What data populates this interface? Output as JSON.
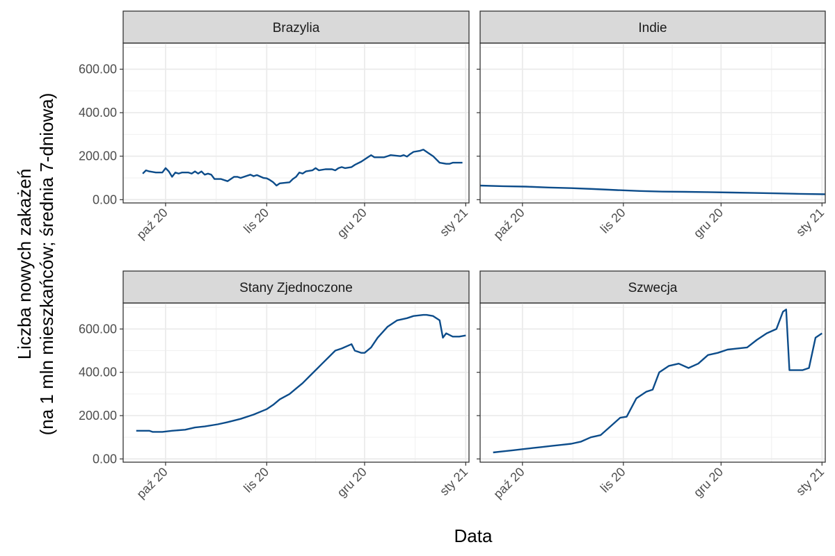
{
  "chart_data": {
    "type": "line",
    "xlabel": "Data",
    "ylabel_line1": "Liczba nowych zakażeń",
    "ylabel_line2": "(na 1 mln mieszkańców; średnia 7-dniowa)",
    "y_ticks": [
      0,
      200,
      400,
      600
    ],
    "y_tick_labels": [
      "0.00",
      "200.00",
      "400.00",
      "600.00"
    ],
    "ylim": [
      -15,
      720
    ],
    "x_ticks": [
      "2020-10-01",
      "2020-11-01",
      "2020-12-01",
      "2021-01-01"
    ],
    "x_tick_labels": [
      "paź 20",
      "lis 20",
      "gru 20",
      "sty 21"
    ],
    "xlim": [
      "2020-09-18",
      "2021-01-02"
    ],
    "grid": true,
    "line_color": "#0c4c8a",
    "panels": [
      {
        "title": "Brazylia",
        "x": [
          "2020-09-24",
          "2020-09-25",
          "2020-09-26",
          "2020-09-28",
          "2020-09-30",
          "2020-10-01",
          "2020-10-02",
          "2020-10-03",
          "2020-10-04",
          "2020-10-05",
          "2020-10-06",
          "2020-10-08",
          "2020-10-09",
          "2020-10-10",
          "2020-10-11",
          "2020-10-12",
          "2020-10-13",
          "2020-10-14",
          "2020-10-15",
          "2020-10-16",
          "2020-10-18",
          "2020-10-20",
          "2020-10-22",
          "2020-10-23",
          "2020-10-24",
          "2020-10-27",
          "2020-10-28",
          "2020-10-29",
          "2020-10-31",
          "2020-11-01",
          "2020-11-02",
          "2020-11-03",
          "2020-11-04",
          "2020-11-05",
          "2020-11-08",
          "2020-11-09",
          "2020-11-10",
          "2020-11-11",
          "2020-11-12",
          "2020-11-13",
          "2020-11-15",
          "2020-11-16",
          "2020-11-17",
          "2020-11-19",
          "2020-11-21",
          "2020-11-22",
          "2020-11-23",
          "2020-11-24",
          "2020-11-25",
          "2020-11-27",
          "2020-11-28",
          "2020-11-30",
          "2020-12-01",
          "2020-12-02",
          "2020-12-03",
          "2020-12-04",
          "2020-12-05",
          "2020-12-07",
          "2020-12-08",
          "2020-12-09",
          "2020-12-12",
          "2020-12-13",
          "2020-12-14",
          "2020-12-15",
          "2020-12-16",
          "2020-12-18",
          "2020-12-19",
          "2020-12-21",
          "2020-12-22",
          "2020-12-24",
          "2020-12-26",
          "2020-12-27",
          "2020-12-28",
          "2020-12-29",
          "2020-12-30",
          "2020-12-31"
        ],
        "y": [
          120,
          135,
          130,
          125,
          125,
          145,
          130,
          105,
          125,
          120,
          125,
          125,
          120,
          130,
          120,
          130,
          115,
          120,
          115,
          95,
          95,
          85,
          105,
          105,
          100,
          115,
          108,
          113,
          100,
          98,
          90,
          80,
          65,
          75,
          80,
          95,
          105,
          125,
          120,
          130,
          135,
          145,
          135,
          140,
          140,
          135,
          145,
          150,
          145,
          150,
          160,
          175,
          185,
          195,
          205,
          195,
          195,
          195,
          200,
          205,
          200,
          205,
          198,
          210,
          220,
          225,
          230,
          210,
          200,
          170,
          165,
          165,
          170,
          170,
          170,
          170
        ]
      },
      {
        "title": "Indie",
        "x": [
          "2020-09-18",
          "2020-09-25",
          "2020-10-02",
          "2020-10-09",
          "2020-10-16",
          "2020-10-23",
          "2020-10-30",
          "2020-11-06",
          "2020-11-13",
          "2020-11-20",
          "2020-11-27",
          "2020-12-04",
          "2020-12-11",
          "2020-12-18",
          "2020-12-25",
          "2021-01-02"
        ],
        "y": [
          65,
          62,
          60,
          56,
          53,
          49,
          44,
          40,
          37,
          36,
          35,
          33,
          31,
          29,
          27,
          25
        ]
      },
      {
        "title": "Stany Zjednoczone",
        "x": [
          "2020-09-22",
          "2020-09-26",
          "2020-09-27",
          "2020-09-30",
          "2020-10-03",
          "2020-10-07",
          "2020-10-10",
          "2020-10-13",
          "2020-10-17",
          "2020-10-20",
          "2020-10-24",
          "2020-10-28",
          "2020-11-01",
          "2020-11-03",
          "2020-11-05",
          "2020-11-08",
          "2020-11-10",
          "2020-11-12",
          "2020-11-14",
          "2020-11-16",
          "2020-11-18",
          "2020-11-20",
          "2020-11-22",
          "2020-11-24",
          "2020-11-27",
          "2020-11-28",
          "2020-11-30",
          "2020-12-01",
          "2020-12-03",
          "2020-12-05",
          "2020-12-08",
          "2020-12-11",
          "2020-12-14",
          "2020-12-16",
          "2020-12-19",
          "2020-12-20",
          "2020-12-22",
          "2020-12-24",
          "2020-12-25",
          "2020-12-26",
          "2020-12-28",
          "2020-12-30",
          "2021-01-01"
        ],
        "y": [
          130,
          130,
          125,
          125,
          130,
          135,
          145,
          150,
          160,
          170,
          185,
          205,
          230,
          250,
          275,
          300,
          325,
          350,
          380,
          410,
          440,
          470,
          500,
          510,
          530,
          500,
          490,
          490,
          515,
          560,
          610,
          640,
          650,
          660,
          665,
          665,
          660,
          640,
          560,
          580,
          565,
          565,
          570
        ]
      },
      {
        "title": "Szwecja",
        "x": [
          "2020-09-22",
          "2020-09-25",
          "2020-09-28",
          "2020-10-01",
          "2020-10-04",
          "2020-10-07",
          "2020-10-10",
          "2020-10-13",
          "2020-10-16",
          "2020-10-19",
          "2020-10-22",
          "2020-10-25",
          "2020-10-28",
          "2020-10-31",
          "2020-11-02",
          "2020-11-05",
          "2020-11-08",
          "2020-11-10",
          "2020-11-12",
          "2020-11-15",
          "2020-11-18",
          "2020-11-21",
          "2020-11-24",
          "2020-11-27",
          "2020-11-30",
          "2020-12-03",
          "2020-12-06",
          "2020-12-09",
          "2020-12-12",
          "2020-12-15",
          "2020-12-18",
          "2020-12-20",
          "2020-12-21",
          "2020-12-22",
          "2020-12-23",
          "2020-12-26",
          "2020-12-28",
          "2020-12-30",
          "2021-01-01"
        ],
        "y": [
          30,
          35,
          40,
          45,
          50,
          55,
          60,
          65,
          70,
          80,
          100,
          110,
          150,
          190,
          195,
          280,
          310,
          320,
          400,
          430,
          440,
          420,
          440,
          480,
          490,
          505,
          510,
          515,
          550,
          580,
          600,
          680,
          690,
          410,
          410,
          410,
          420,
          560,
          580
        ]
      }
    ]
  }
}
